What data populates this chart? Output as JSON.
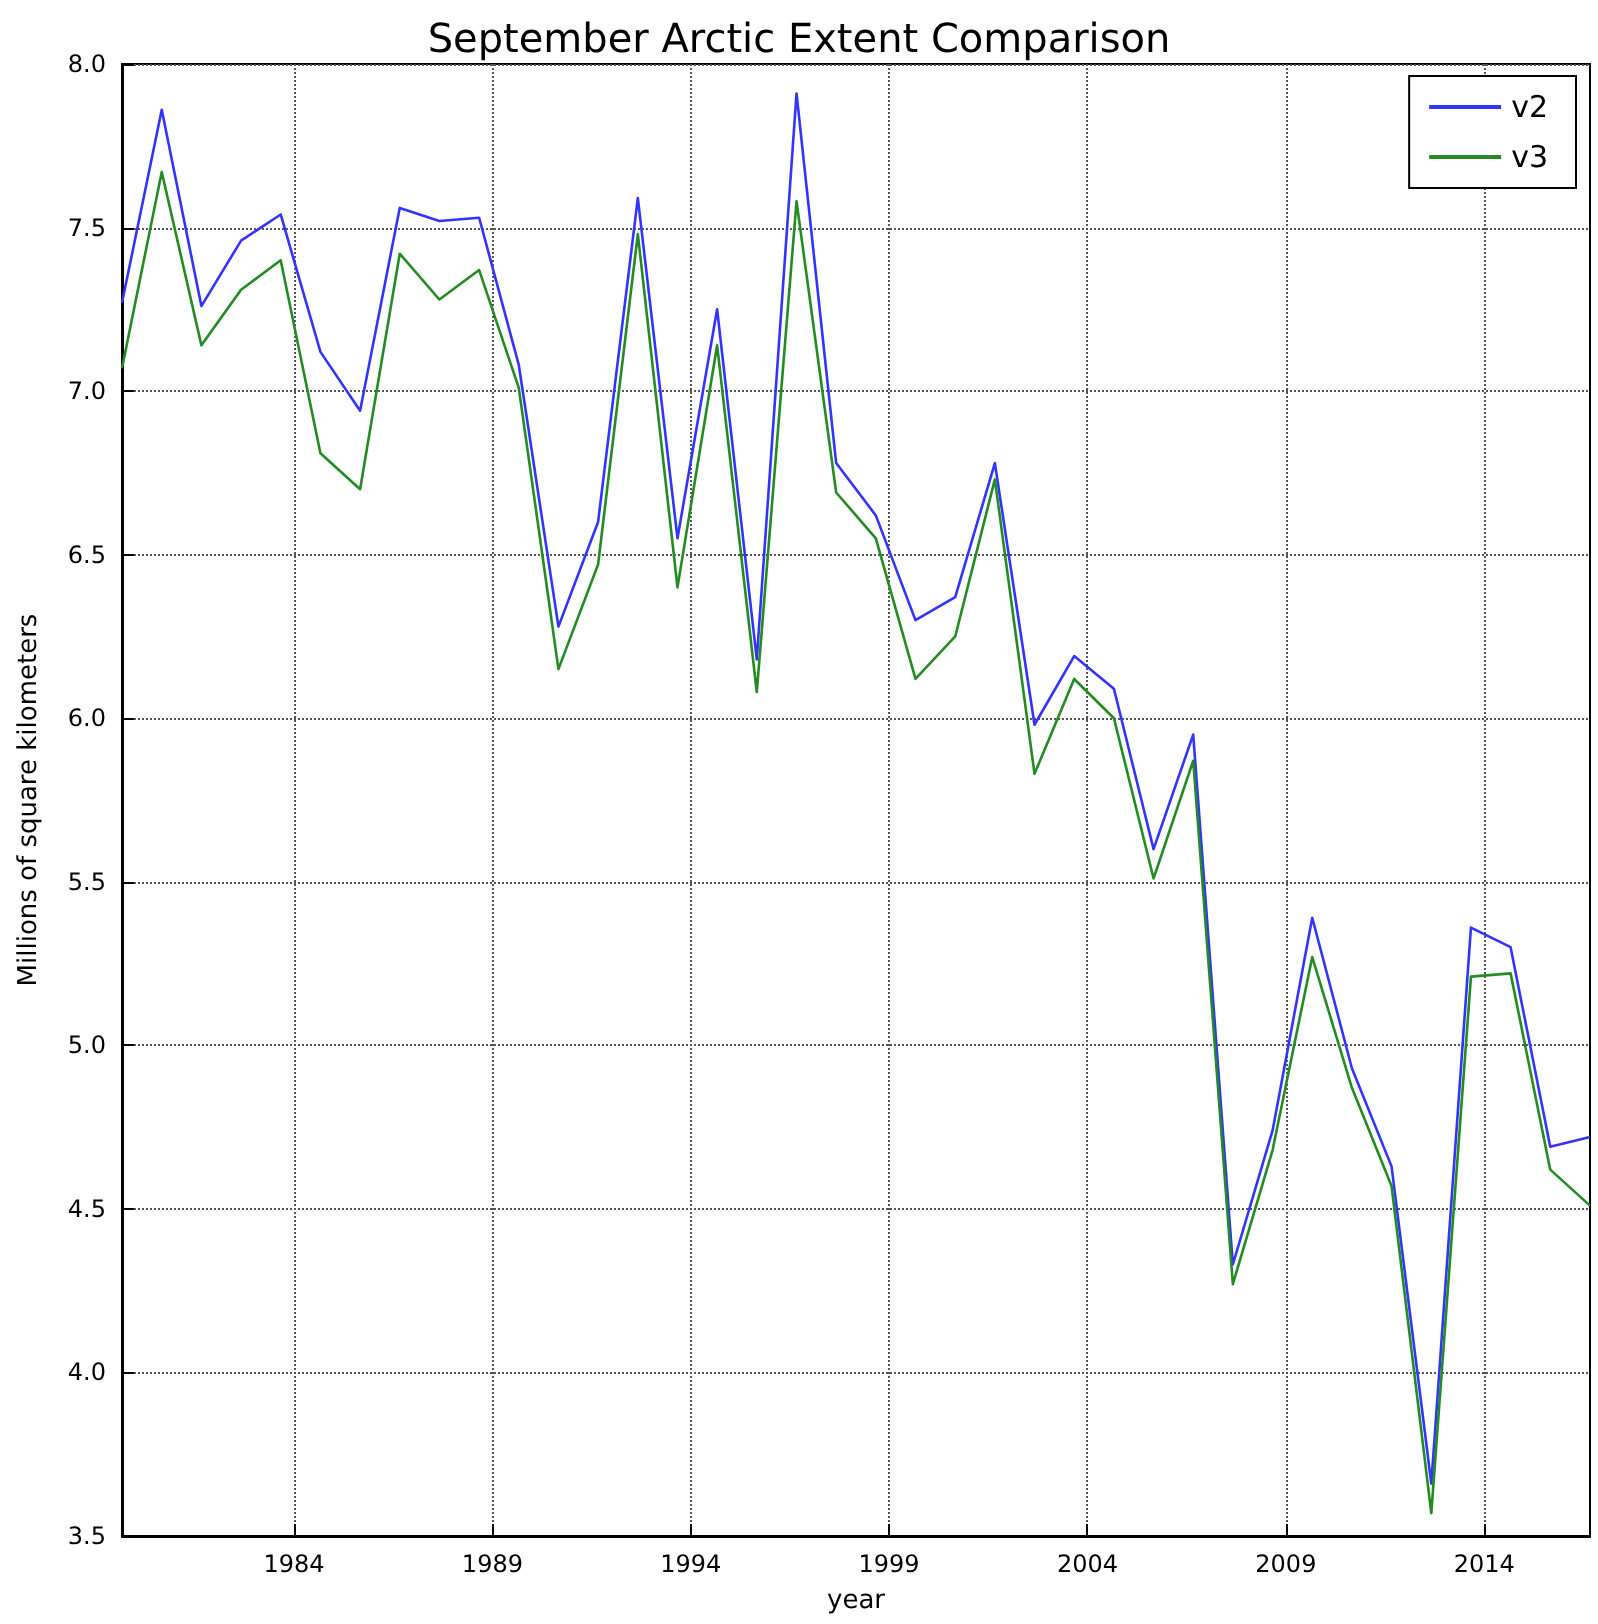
{
  "chart_data": {
    "type": "line",
    "title": "September Arctic Extent Comparison",
    "xlabel": "year",
    "ylabel": "Millions of square kilometers",
    "x": [
      "1979-09",
      "1980-09",
      "1981-09",
      "1982-09",
      "1983-09",
      "1984-09",
      "1985-09",
      "1986-09",
      "1987-09",
      "1988-09",
      "1989-09",
      "1990-09",
      "1991-09",
      "1992-09",
      "1993-09",
      "1994-09",
      "1995-09",
      "1996-09",
      "1997-09",
      "1998-09",
      "1999-09",
      "2000-09",
      "2001-09",
      "2002-09",
      "2003-09",
      "2004-09",
      "2005-09",
      "2006-09",
      "2007-09",
      "2008-09",
      "2009-09",
      "2010-09",
      "2011-09",
      "2012-09",
      "2013-09",
      "2014-09",
      "2015-09",
      "2016-09"
    ],
    "series": [
      {
        "name": "v2",
        "color": "#3333ff",
        "values": [
          7.27,
          7.86,
          7.26,
          7.46,
          7.54,
          7.12,
          6.94,
          7.56,
          7.52,
          7.53,
          7.08,
          6.28,
          6.6,
          7.59,
          6.55,
          7.25,
          6.18,
          7.91,
          6.78,
          6.62,
          6.3,
          6.37,
          6.78,
          5.98,
          6.19,
          6.09,
          5.6,
          5.95,
          4.33,
          4.74,
          5.39,
          4.93,
          4.63,
          3.66,
          5.36,
          5.3,
          4.69,
          4.72
        ]
      },
      {
        "name": "v3",
        "color": "#228b22",
        "values": [
          7.07,
          7.67,
          7.14,
          7.31,
          7.4,
          6.81,
          6.7,
          7.42,
          7.28,
          7.37,
          7.01,
          6.15,
          6.47,
          7.48,
          6.4,
          7.14,
          6.08,
          7.58,
          6.69,
          6.55,
          6.12,
          6.25,
          6.73,
          5.83,
          6.12,
          6.0,
          5.51,
          5.87,
          4.27,
          4.68,
          5.27,
          4.87,
          4.57,
          3.57,
          5.21,
          5.22,
          4.62,
          4.51
        ]
      }
    ],
    "xlim": [
      "1979-09",
      "2016-09"
    ],
    "xticks": [
      "1984",
      "1989",
      "1994",
      "1999",
      "2004",
      "2009",
      "2014"
    ],
    "ylim": [
      3.5,
      8.0
    ],
    "yticks": [
      3.5,
      {
        "value": 4,
        "label": "4.0"
      },
      4.5,
      {
        "value": 5,
        "label": "5.0"
      },
      5.5,
      {
        "value": 6,
        "label": "6.0"
      },
      6.5,
      {
        "value": 7,
        "label": "7.0"
      },
      7.5,
      {
        "value": 8,
        "label": "8.0"
      }
    ],
    "grid": true,
    "legend": "top right",
    "marker": "none"
  }
}
